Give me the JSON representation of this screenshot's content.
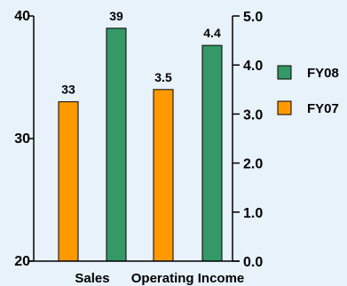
{
  "chart_data": {
    "type": "bar",
    "categories": [
      "Sales",
      "Operating Income"
    ],
    "series": [
      {
        "name": "FY07",
        "color": "#ff9900",
        "values": [
          33,
          3.5
        ],
        "labels": [
          "33",
          "3.5"
        ]
      },
      {
        "name": "FY08",
        "color": "#339966",
        "values": [
          39,
          4.4
        ],
        "labels": [
          "39",
          "4.4"
        ]
      }
    ],
    "axes": {
      "left": {
        "range": [
          20,
          40
        ],
        "ticks": [
          20,
          30,
          40
        ],
        "tick_labels": [
          "20",
          "30",
          "40"
        ],
        "applies_to": "Sales"
      },
      "right": {
        "range": [
          0.0,
          5.0
        ],
        "ticks": [
          0.0,
          1.0,
          2.0,
          3.0,
          4.0,
          5.0
        ],
        "tick_labels": [
          "0.0",
          "1.0",
          "2.0",
          "3.0",
          "4.0",
          "5.0"
        ],
        "applies_to": "Operating Income"
      }
    },
    "legend": {
      "placement": "right",
      "entries": [
        {
          "name": "FY08",
          "color": "#339966"
        },
        {
          "name": "FY07",
          "color": "#ff9900"
        }
      ]
    },
    "grid": false,
    "background": "#e8f2fb"
  }
}
